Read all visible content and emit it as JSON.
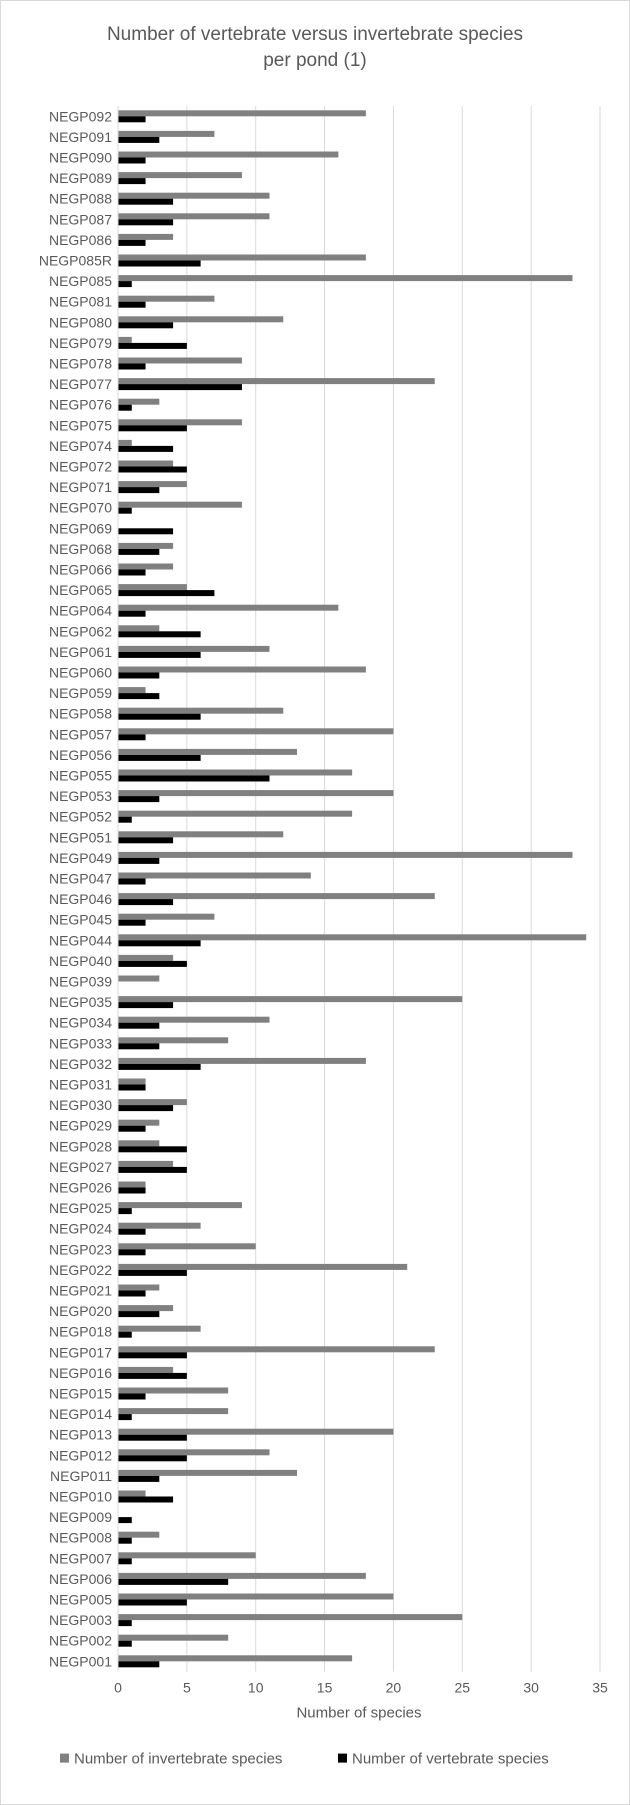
{
  "chart_data": {
    "type": "bar",
    "orientation": "horizontal",
    "title_lines": [
      "Number of vertebrate versus invertebrate species",
      "per pond (1)"
    ],
    "xlabel": "Number of species",
    "xlim": [
      0,
      35
    ],
    "x_ticks": [
      "0",
      "5",
      "10",
      "15",
      "20",
      "25",
      "30",
      "35"
    ],
    "grid": true,
    "legend_position": "bottom",
    "categories": [
      "NEGP092",
      "NEGP091",
      "NEGP090",
      "NEGP089",
      "NEGP088",
      "NEGP087",
      "NEGP086",
      "NEGP085R",
      "NEGP085",
      "NEGP081",
      "NEGP080",
      "NEGP079",
      "NEGP078",
      "NEGP077",
      "NEGP076",
      "NEGP075",
      "NEGP074",
      "NEGP072",
      "NEGP071",
      "NEGP070",
      "NEGP069",
      "NEGP068",
      "NEGP066",
      "NEGP065",
      "NEGP064",
      "NEGP062",
      "NEGP061",
      "NEGP060",
      "NEGP059",
      "NEGP058",
      "NEGP057",
      "NEGP056",
      "NEGP055",
      "NEGP053",
      "NEGP052",
      "NEGP051",
      "NEGP049",
      "NEGP047",
      "NEGP046",
      "NEGP045",
      "NEGP044",
      "NEGP040",
      "NEGP039",
      "NEGP035",
      "NEGP034",
      "NEGP033",
      "NEGP032",
      "NEGP031",
      "NEGP030",
      "NEGP029",
      "NEGP028",
      "NEGP027",
      "NEGP026",
      "NEGP025",
      "NEGP024",
      "NEGP023",
      "NEGP022",
      "NEGP021",
      "NEGP020",
      "NEGP018",
      "NEGP017",
      "NEGP016",
      "NEGP015",
      "NEGP014",
      "NEGP013",
      "NEGP012",
      "NEGP011",
      "NEGP010",
      "NEGP009",
      "NEGP008",
      "NEGP007",
      "NEGP006",
      "NEGP005",
      "NEGP003",
      "NEGP002",
      "NEGP001"
    ],
    "series": [
      {
        "name": "Number of invertebrate species",
        "color": "#808080",
        "values": [
          18,
          7,
          16,
          9,
          11,
          11,
          4,
          18,
          33,
          7,
          12,
          1,
          9,
          23,
          3,
          9,
          1,
          4,
          5,
          9,
          0,
          4,
          4,
          5,
          16,
          3,
          11,
          18,
          2,
          12,
          20,
          13,
          17,
          20,
          17,
          12,
          33,
          14,
          23,
          7,
          34,
          4,
          3,
          25,
          11,
          8,
          18,
          2,
          5,
          3,
          3,
          4,
          2,
          9,
          6,
          10,
          21,
          3,
          4,
          6,
          23,
          4,
          8,
          8,
          20,
          11,
          13,
          2,
          0,
          3,
          10,
          18,
          20,
          25,
          8,
          17
        ]
      },
      {
        "name": "Number of vertebrate species",
        "color": "#000000",
        "values": [
          2,
          3,
          2,
          2,
          4,
          4,
          2,
          6,
          1,
          2,
          4,
          5,
          2,
          9,
          1,
          5,
          4,
          5,
          3,
          1,
          4,
          3,
          2,
          7,
          2,
          6,
          6,
          3,
          3,
          6,
          2,
          6,
          11,
          3,
          1,
          4,
          3,
          2,
          4,
          2,
          6,
          5,
          0,
          4,
          3,
          3,
          6,
          2,
          4,
          2,
          5,
          5,
          2,
          1,
          2,
          2,
          5,
          2,
          3,
          1,
          5,
          5,
          2,
          1,
          5,
          5,
          3,
          4,
          1,
          1,
          1,
          8,
          5,
          1,
          1,
          3
        ]
      }
    ]
  },
  "colors": {
    "grid": "#d9d9d9",
    "text": "#595959",
    "frame": "#d9d9d9"
  }
}
